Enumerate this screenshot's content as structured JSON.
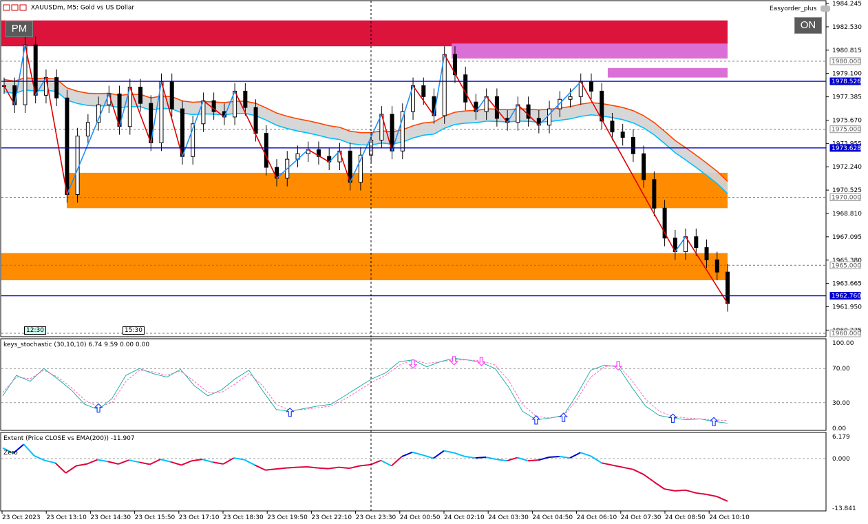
{
  "window": {
    "title": "XAUUSDm, M5:  Gold vs US Dollar",
    "ea_name": "Easyorder_plus",
    "pm_label": "PM",
    "on_label": "ON",
    "icon": "chart-window-icon",
    "ea_icon": "hat-icon"
  },
  "colors": {
    "bull": "#000000",
    "bear": "#000000",
    "zone_red": "#dc143c",
    "zone_pink": "#da70d6",
    "zone_orange": "#ff8c00",
    "hline_blue": "#0000cd",
    "zigzag_red": "#e00000",
    "zigzag_blue": "#1e90ff",
    "ema_orange": "#ff4500",
    "ema_cyan": "#00bfff",
    "stoch_main": "#20b2aa",
    "stoch_signal": "#ff69b4",
    "arrow_up": "#1e3cff",
    "arrow_down": "#ff40ff",
    "extent_red": "#e0003c",
    "extent_blue": "#0000cd",
    "extent_cyan": "#00bfff"
  },
  "time_markers": [
    "12:30",
    "15:30"
  ],
  "chart_data": [
    {
      "type": "candlestick",
      "title": "XAUUSDm, M5:  Gold vs US Dollar",
      "ylim": [
        1959.8,
        1984.4
      ],
      "y_ticks": [
        "1984.245",
        "1982.530",
        "1980.815",
        "1979.100",
        "1977.385",
        "1975.670",
        "1973.955",
        "1972.240",
        "1970.525",
        "1968.810",
        "1967.095",
        "1965.380",
        "1963.665",
        "1961.950",
        "1960.235"
      ],
      "x_labels": [
        "23 Oct 2023",
        "23 Oct 13:10",
        "23 Oct 14:30",
        "23 Oct 15:50",
        "23 Oct 17:10",
        "23 Oct 18:30",
        "23 Oct 19:50",
        "23 Oct 22:10",
        "23 Oct 23:30",
        "24 Oct 00:50",
        "24 Oct 02:10",
        "24 Oct 03:30",
        "24 Oct 04:50",
        "24 Oct 06:10",
        "24 Oct 07:30",
        "24 Oct 08:50",
        "24 Oct 10:10"
      ],
      "price_labels": [
        {
          "value": 1980.0,
          "label": "1980.000",
          "style": "gray"
        },
        {
          "value": 1978.526,
          "label": "1978.526",
          "style": "blue"
        },
        {
          "value": 1975.0,
          "label": "1975.000",
          "style": "gray"
        },
        {
          "value": 1973.628,
          "label": "1973.628",
          "style": "blue"
        },
        {
          "value": 1970.0,
          "label": "1970.000",
          "style": "gray"
        },
        {
          "value": 1965.0,
          "label": "1965.000",
          "style": "gray"
        },
        {
          "value": 1962.76,
          "label": "1962.760",
          "style": "blue"
        },
        {
          "value": 1960.0,
          "label": "1960.000",
          "style": "gray"
        }
      ],
      "zones": [
        {
          "color": "zone_red",
          "x0": 0,
          "x1": 1.0,
          "y0": 1981.1,
          "y1": 1983.0
        },
        {
          "color": "zone_pink",
          "x0": 0.62,
          "x1": 1.0,
          "y0": 1980.2,
          "y1": 1981.3
        },
        {
          "color": "zone_pink",
          "x0": 0.835,
          "x1": 1.0,
          "y0": 1978.8,
          "y1": 1979.5
        },
        {
          "color": "zone_orange",
          "x0": 0.09,
          "x1": 1.0,
          "y0": 1969.2,
          "y1": 1971.8
        },
        {
          "color": "zone_orange",
          "x0": 0,
          "x1": 1.0,
          "y0": 1963.9,
          "y1": 1965.9
        }
      ],
      "close_series": [
        1978.2,
        1976.8,
        1981.2,
        1977.5,
        1978.8,
        1977.3,
        1970.2,
        1974.5,
        1975.5,
        1976.8,
        1977.6,
        1975.2,
        1978.1,
        1976.9,
        1974.0,
        1978.5,
        1976.5,
        1973.0,
        1975.4,
        1977.1,
        1976.3,
        1975.9,
        1977.8,
        1976.6,
        1974.7,
        1972.2,
        1971.4,
        1972.8,
        1973.2,
        1973.5,
        1973.0,
        1972.6,
        1973.4,
        1971.1,
        1973.1,
        1974.2,
        1976.1,
        1973.4,
        1976.3,
        1978.2,
        1977.4,
        1976.0,
        1980.5,
        1979.0,
        1977.0,
        1976.3,
        1977.4,
        1975.8,
        1975.5,
        1976.8,
        1975.8,
        1975.3,
        1976.5,
        1977.2,
        1977.4,
        1978.5,
        1977.8,
        1975.6,
        1974.8,
        1974.4,
        1973.2,
        1971.3,
        1969.2,
        1967.0,
        1966.0,
        1967.1,
        1966.3,
        1965.4,
        1964.5,
        1962.2
      ]
    },
    {
      "type": "line",
      "title": "keys_stochastic (30,10,10) 6.74 9.59 0.00 0.00",
      "ylim": [
        0,
        100
      ],
      "y_ticks": [
        "100.00",
        "70.00",
        "30.00",
        "0.00"
      ],
      "series": [
        {
          "name": "main",
          "values": [
            38,
            62,
            55,
            70,
            58,
            45,
            28,
            22,
            35,
            62,
            70,
            64,
            60,
            69,
            50,
            38,
            45,
            58,
            68,
            44,
            22,
            20,
            23,
            26,
            28,
            38,
            48,
            58,
            65,
            78,
            80,
            72,
            78,
            82,
            80,
            77,
            70,
            48,
            20,
            10,
            12,
            15,
            40,
            68,
            74,
            72,
            48,
            26,
            15,
            12,
            10,
            11,
            8,
            6
          ]
        },
        {
          "name": "signal",
          "values": [
            42,
            60,
            58,
            68,
            60,
            48,
            33,
            25,
            30,
            55,
            68,
            66,
            62,
            67,
            55,
            42,
            42,
            52,
            64,
            50,
            28,
            21,
            22,
            24,
            26,
            34,
            44,
            54,
            62,
            74,
            80,
            76,
            78,
            80,
            80,
            79,
            74,
            56,
            28,
            14,
            12,
            14,
            34,
            60,
            72,
            74,
            56,
            34,
            20,
            14,
            12,
            11,
            10,
            9
          ]
        }
      ],
      "arrows": [
        {
          "dir": "up",
          "i": 7,
          "v": 23
        },
        {
          "dir": "up",
          "i": 21,
          "v": 18
        },
        {
          "dir": "down",
          "i": 30,
          "v": 76
        },
        {
          "dir": "down",
          "i": 33,
          "v": 80
        },
        {
          "dir": "down",
          "i": 35,
          "v": 79
        },
        {
          "dir": "up",
          "i": 39,
          "v": 9
        },
        {
          "dir": "up",
          "i": 41,
          "v": 12
        },
        {
          "dir": "down",
          "i": 45,
          "v": 74
        },
        {
          "dir": "up",
          "i": 49,
          "v": 11
        },
        {
          "dir": "up",
          "i": 52,
          "v": 7
        }
      ]
    },
    {
      "type": "line",
      "title": "Extent (Price CLOSE vs EMA(200)) -11.907",
      "ylim": [
        -13.841,
        6.179
      ],
      "y_ticks": [
        "6.179",
        "0.000",
        "-13.841"
      ],
      "zero_label": "Zero",
      "series": [
        {
          "name": "extent",
          "values": [
            3.0,
            1.5,
            4.0,
            0.8,
            -0.5,
            -1.2,
            -4.0,
            -2.0,
            -1.5,
            -0.3,
            -0.8,
            -1.5,
            -0.4,
            -1.0,
            -1.6,
            -0.2,
            -0.9,
            -1.8,
            -0.6,
            -0.2,
            -1.0,
            -1.5,
            0.2,
            -0.3,
            -1.8,
            -3.2,
            -2.9,
            -2.6,
            -2.4,
            -2.3,
            -2.6,
            -2.8,
            -2.4,
            -2.7,
            -2.0,
            -1.7,
            -0.5,
            -2.0,
            0.6,
            1.8,
            1.0,
            0.1,
            2.2,
            1.6,
            0.6,
            0.2,
            0.4,
            -0.2,
            -0.6,
            0.3,
            -0.6,
            -0.4,
            0.4,
            0.6,
            0.2,
            1.7,
            0.7,
            -1.2,
            -1.8,
            -2.4,
            -3.0,
            -4.4,
            -6.5,
            -8.5,
            -9.0,
            -8.8,
            -9.6,
            -10.0,
            -10.6,
            -11.9
          ]
        }
      ]
    }
  ]
}
